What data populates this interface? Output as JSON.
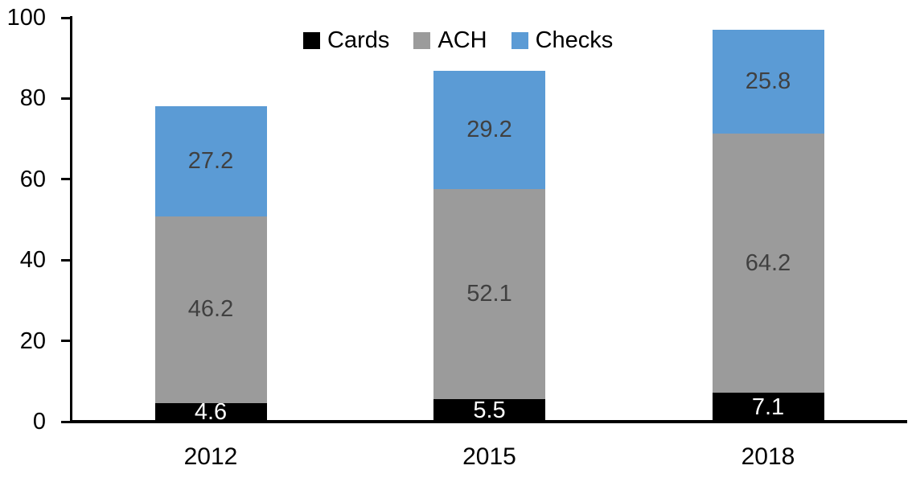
{
  "chart_data": {
    "type": "bar",
    "stacked": true,
    "title": "",
    "xlabel": "",
    "ylabel": "",
    "categories": [
      "2012",
      "2015",
      "2018"
    ],
    "series": [
      {
        "name": "Cards",
        "color": "#000000",
        "label_color": "#ffffff",
        "values": [
          4.6,
          5.5,
          7.1
        ]
      },
      {
        "name": "ACH",
        "color": "#9b9b9b",
        "label_color": "#404040",
        "values": [
          46.2,
          52.1,
          64.2
        ]
      },
      {
        "name": "Checks",
        "color": "#5b9bd5",
        "label_color": "#404040",
        "values": [
          27.2,
          29.2,
          25.8
        ]
      }
    ],
    "totals": [
      78.0,
      86.8,
      97.1
    ],
    "ylim": [
      0,
      100
    ],
    "yticks": [
      0,
      20,
      40,
      60,
      80,
      100
    ],
    "grid": false,
    "legend_position": "top-center",
    "value_labels_shown": true,
    "axis_color": "#000000"
  }
}
